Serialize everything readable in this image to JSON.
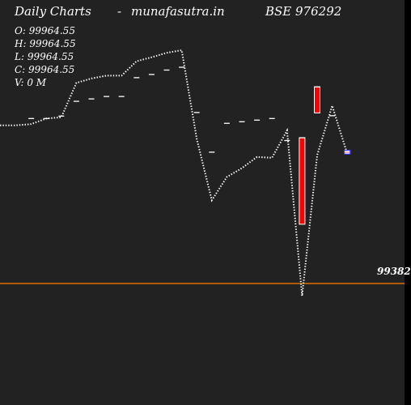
{
  "header": {
    "left": "Daily Charts",
    "dash": "-",
    "site": "munafasutra.in",
    "symbol": "BSE 976292"
  },
  "ohlc": {
    "open": "O: 99964.55",
    "high": "H: 99964.55",
    "low": "L: 99964.55",
    "close": "C: 99964.55",
    "volume": "V: 0  M"
  },
  "price_line_label": "99382",
  "colors": {
    "background": "#222222",
    "line": "#ffffff",
    "candle_body": "#ff0000",
    "price_line": "#ff8000",
    "marker": "#ffffff"
  },
  "chart_data": {
    "type": "line",
    "title": "",
    "xlabel": "",
    "ylabel": "",
    "ylim": [
      99382,
      99964.55
    ],
    "price_line": 99382,
    "line_series": [
      {
        "x": 0,
        "y": 99777
      },
      {
        "x": 1,
        "y": 99780
      },
      {
        "x": 2,
        "y": 99794
      },
      {
        "x": 3,
        "y": 99797
      },
      {
        "x": 4,
        "y": 99883
      },
      {
        "x": 5,
        "y": 99894
      },
      {
        "x": 6,
        "y": 99901
      },
      {
        "x": 7,
        "y": 99901
      },
      {
        "x": 8,
        "y": 99937
      },
      {
        "x": 9,
        "y": 99947
      },
      {
        "x": 10,
        "y": 99958
      },
      {
        "x": 11,
        "y": 99964.55
      },
      {
        "x": 12,
        "y": 99743
      },
      {
        "x": 13,
        "y": 99590
      },
      {
        "x": 14,
        "y": 99648
      },
      {
        "x": 15,
        "y": 99670
      },
      {
        "x": 16,
        "y": 99698
      },
      {
        "x": 17,
        "y": 99696
      },
      {
        "x": 18,
        "y": 99764
      },
      {
        "x": 19,
        "y": 99351
      },
      {
        "x": 20,
        "y": 99702
      },
      {
        "x": 21,
        "y": 99826
      },
      {
        "x": 22,
        "y": 99706
      }
    ],
    "markers": [
      {
        "x": 1,
        "y": 99794
      },
      {
        "x": 2,
        "y": 99794
      },
      {
        "x": 3,
        "y": 99800
      },
      {
        "x": 4,
        "y": 99837
      },
      {
        "x": 5,
        "y": 99843
      },
      {
        "x": 6,
        "y": 99849
      },
      {
        "x": 7,
        "y": 99849
      },
      {
        "x": 8,
        "y": 99896
      },
      {
        "x": 9,
        "y": 99904
      },
      {
        "x": 10,
        "y": 99915
      },
      {
        "x": 11,
        "y": 99922
      },
      {
        "x": 12,
        "y": 99809
      },
      {
        "x": 13,
        "y": 99710
      },
      {
        "x": 14,
        "y": 99782
      },
      {
        "x": 15,
        "y": 99786
      },
      {
        "x": 16,
        "y": 99790
      },
      {
        "x": 17,
        "y": 99794
      },
      {
        "x": 18,
        "y": 99739
      },
      {
        "x": 19,
        "y": 99746
      },
      {
        "x": 20,
        "y": 99873
      },
      {
        "x": 21,
        "y": 99801
      },
      {
        "x": 22,
        "y": 99710
      }
    ],
    "candles": [
      {
        "x": 19,
        "open": 99746,
        "close": 99530
      },
      {
        "x": 20,
        "open": 99808,
        "close": 99873
      },
      {
        "x": 22,
        "open": 99710,
        "close": 99713
      }
    ]
  }
}
